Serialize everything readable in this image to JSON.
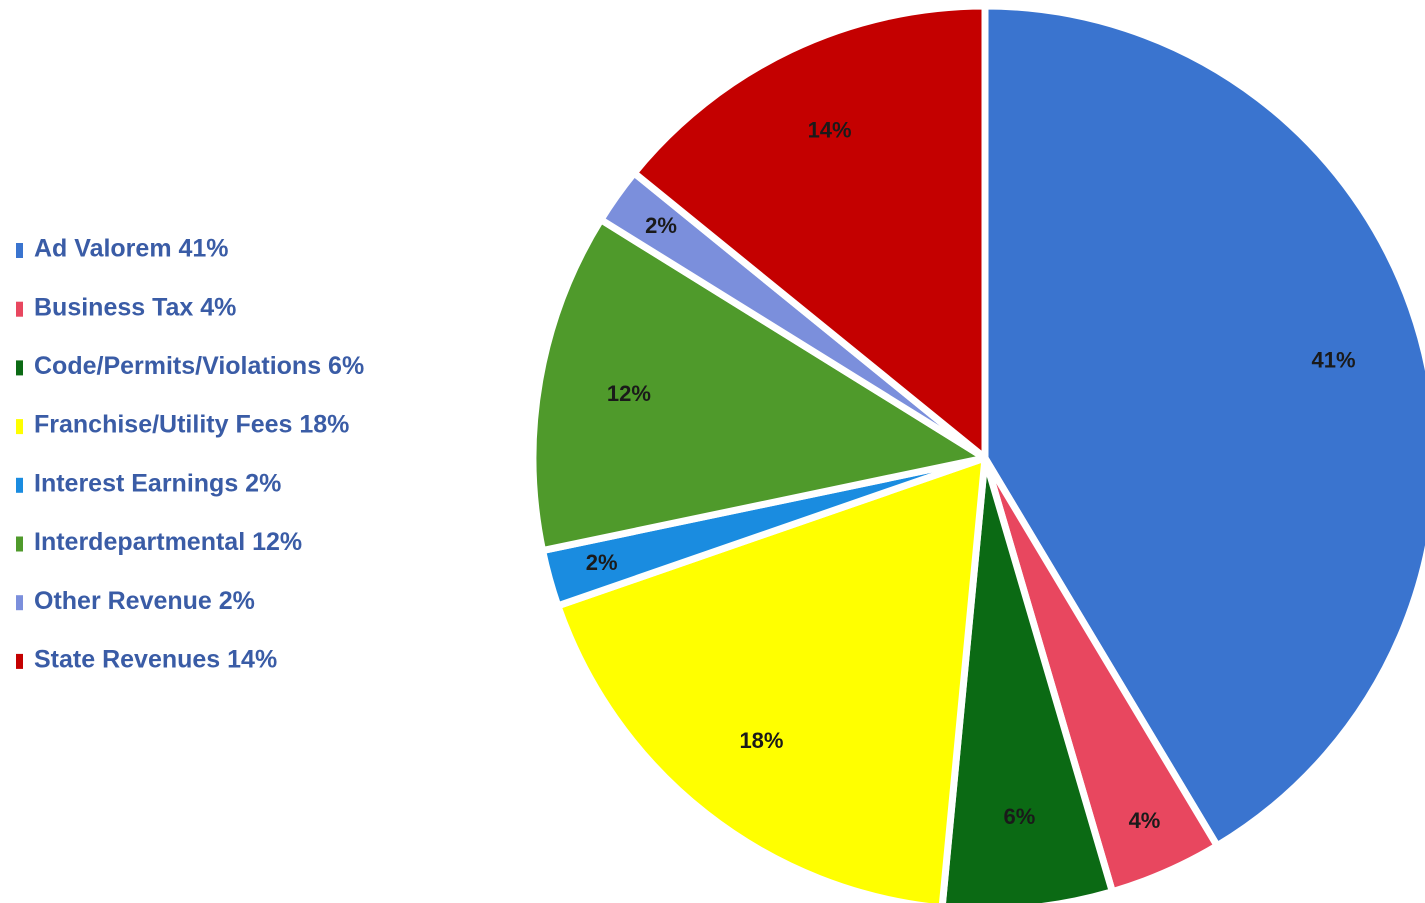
{
  "chart_data": {
    "type": "pie",
    "categories": [
      "Ad Valorem  41%",
      "Business Tax  4%",
      "Code/Permits/Violations 6%",
      "Franchise/Utility  Fees  18%",
      "Interest Earnings  2%",
      "Interdepartmental 12%",
      "Other Revenue 2%",
      "State Revenues 14%"
    ],
    "values": [
      41,
      4,
      6,
      18,
      2,
      12,
      2,
      14
    ],
    "value_labels": [
      "41%",
      "4%",
      "6%",
      "18%",
      "2%",
      "12%",
      "2%",
      "14%"
    ],
    "colors": [
      "#3a74cf",
      "#e8475f",
      "#0b6a14",
      "#ffff00",
      "#1a8ce0",
      "#4f9a2b",
      "#7b8fdc",
      "#c40000"
    ],
    "legend": "left"
  }
}
